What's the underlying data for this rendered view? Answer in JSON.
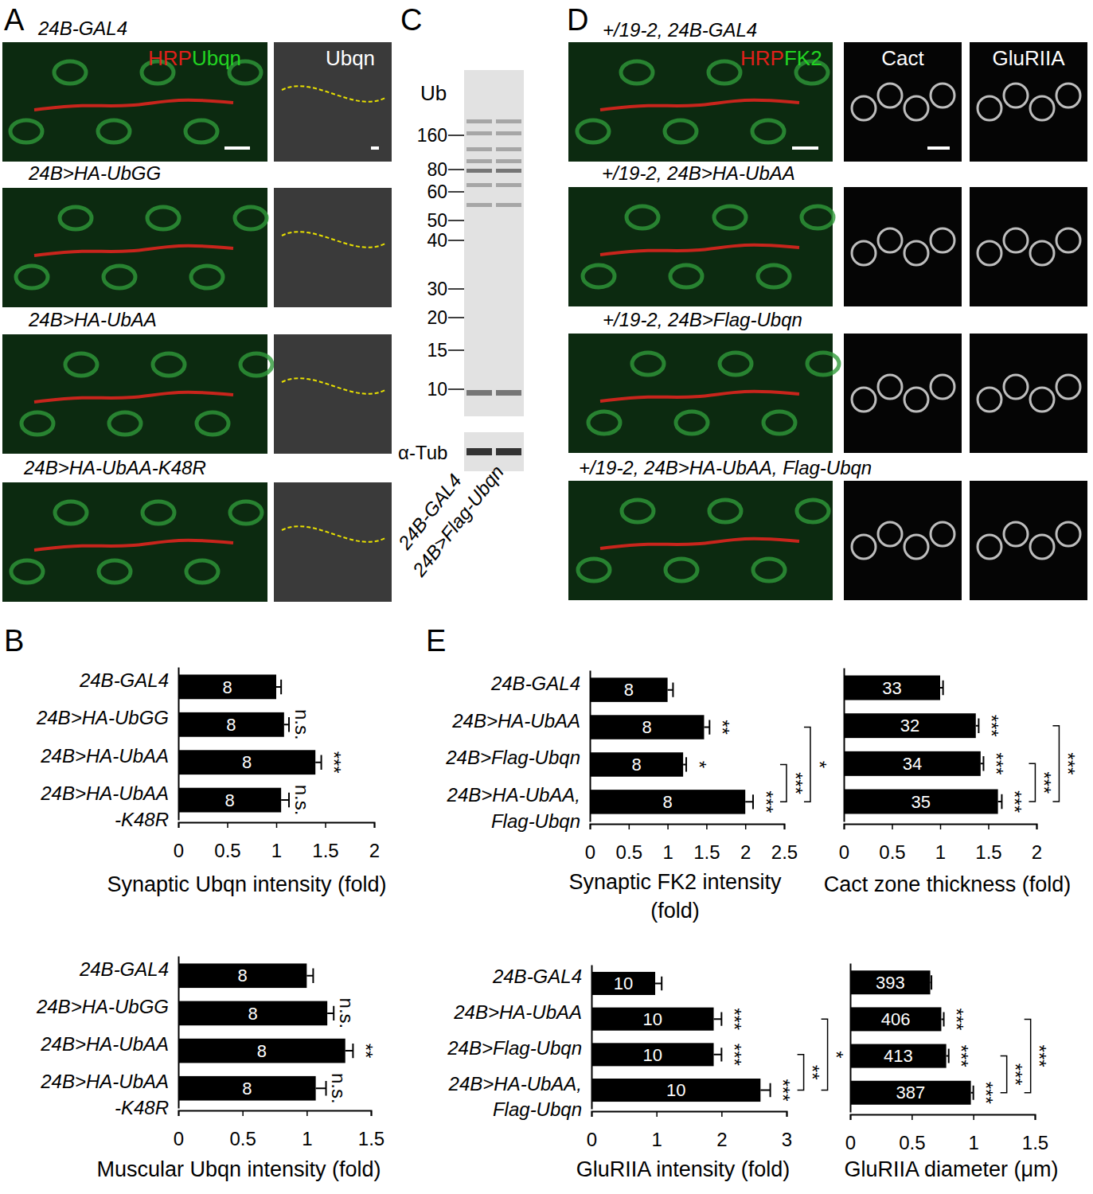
{
  "letters": [
    "A",
    "B",
    "C",
    "D",
    "E"
  ],
  "panels": {
    "A": {
      "rows": [
        "24B-GAL4",
        "24B>HA-UbGG",
        "24B>HA-UbAA",
        "24B>HA-UbAA-K48R"
      ],
      "channels": [
        {
          "text": "HRP",
          "color": "#e0201a"
        },
        {
          "text": "Ubqn",
          "color": "#22d422"
        }
      ],
      "gray_labels": [
        "Ubqn"
      ]
    },
    "C": {
      "blot_label": "Ub",
      "markers": [
        160,
        80,
        60,
        50,
        40,
        30,
        20,
        15,
        10
      ],
      "loading_label": "α-Tub",
      "lanes": [
        "24B-GAL4",
        "24B>Flag-Ubqn"
      ]
    },
    "D": {
      "rows": [
        "+/19-2, 24B-GAL4",
        "+/19-2, 24B>HA-UbAA",
        "+/19-2, 24B>Flag-Ubqn",
        "+/19-2, 24B>HA-UbAA, Flag-Ubqn"
      ],
      "channels": [
        {
          "text": "HRP",
          "color": "#e0201a"
        },
        {
          "text": "FK2",
          "color": "#22d422"
        }
      ],
      "gray_labels": [
        "Cact",
        "GluRIIA"
      ]
    }
  },
  "chart_data": [
    {
      "type": "bar",
      "orientation": "horizontal",
      "color": "#000000",
      "data_labels": false,
      "xlabel": "Synaptic Ubqn intensity (fold)",
      "categories": [
        "24B-GAL4",
        "24B>HA-UbGG",
        "24B>HA-UbAA",
        "24B>HA-UbAA\n-K48R"
      ],
      "values": [
        1.0,
        1.08,
        1.4,
        1.05
      ],
      "errors": [
        0.05,
        0.05,
        0.06,
        0.08
      ],
      "n": [
        8,
        8,
        8,
        8
      ],
      "significance": [
        null,
        "n.s.",
        "***",
        "n.s."
      ],
      "comparisons": [],
      "xlim": [
        0,
        2
      ],
      "xticks": [
        0,
        0.5,
        1,
        1.5,
        2
      ]
    },
    {
      "type": "bar",
      "orientation": "horizontal",
      "color": "#000000",
      "data_labels": false,
      "xlabel": "Muscular Ubqn intensity (fold)",
      "categories": [
        "24B-GAL4",
        "24B>HA-UbGG",
        "24B>HA-UbAA",
        "24B>HA-UbAA\n-K48R"
      ],
      "values": [
        1.0,
        1.16,
        1.3,
        1.07
      ],
      "errors": [
        0.05,
        0.05,
        0.06,
        0.08
      ],
      "n": [
        8,
        8,
        8,
        8
      ],
      "significance": [
        null,
        "n.s.",
        "**",
        "n.s."
      ],
      "comparisons": [],
      "xlim": [
        0,
        1.5
      ],
      "xticks": [
        0,
        0.5,
        1,
        1.5
      ]
    },
    {
      "type": "bar",
      "orientation": "horizontal",
      "color": "#000000",
      "data_labels": false,
      "xlabel": "Synaptic FK2 intensity\n(fold)",
      "categories": [
        "24B-GAL4",
        "24B>HA-UbAA",
        "24B>Flag-Ubqn",
        "24B>HA-UbAA,\nFlag-Ubqn"
      ],
      "values": [
        1.0,
        1.47,
        1.2,
        2.0
      ],
      "errors": [
        0.07,
        0.07,
        0.04,
        0.1
      ],
      "n": [
        8,
        8,
        8,
        8
      ],
      "significance": [
        null,
        "**",
        "*",
        "***"
      ],
      "comparisons": [
        {
          "from": 2,
          "to": 3,
          "label": "***"
        },
        {
          "from": 1,
          "to": 3,
          "label": "*"
        }
      ],
      "xlim": [
        0,
        2.5
      ],
      "xticks": [
        0,
        0.5,
        1,
        1.5,
        2,
        2.5
      ]
    },
    {
      "type": "bar",
      "orientation": "horizontal",
      "color": "#000000",
      "data_labels": false,
      "xlabel": "Cact zone thickness (fold)",
      "categories": [
        null,
        null,
        null,
        null
      ],
      "values": [
        1.0,
        1.37,
        1.42,
        1.6
      ],
      "errors": [
        0.03,
        0.03,
        0.03,
        0.04
      ],
      "n": [
        33,
        32,
        34,
        35
      ],
      "significance": [
        null,
        "***",
        "***",
        "***"
      ],
      "comparisons": [
        {
          "from": 2,
          "to": 3,
          "label": "***"
        },
        {
          "from": 1,
          "to": 3,
          "label": "***"
        }
      ],
      "xlim": [
        0,
        2
      ],
      "xticks": [
        0,
        0.5,
        1,
        1.5,
        2
      ]
    },
    {
      "type": "bar",
      "orientation": "horizontal",
      "color": "#000000",
      "data_labels": false,
      "xlabel": "GluRIIA intensity (fold)",
      "categories": [
        "24B-GAL4",
        "24B>HA-UbAA",
        "24B>Flag-Ubqn",
        "24B>HA-UbAA,\nFlag-Ubqn"
      ],
      "values": [
        0.98,
        1.88,
        1.88,
        2.6
      ],
      "errors": [
        0.1,
        0.12,
        0.12,
        0.15
      ],
      "n": [
        10,
        10,
        10,
        10
      ],
      "significance": [
        null,
        "***",
        "***",
        "***"
      ],
      "comparisons": [
        {
          "from": 2,
          "to": 3,
          "label": "**"
        },
        {
          "from": 1,
          "to": 3,
          "label": "*"
        }
      ],
      "xlim": [
        0,
        3
      ],
      "xticks": [
        0,
        1,
        2,
        3
      ]
    },
    {
      "type": "bar",
      "orientation": "horizontal",
      "color": "#000000",
      "data_labels": false,
      "xlabel": "GluRIIA diameter (μm)",
      "categories": [
        null,
        null,
        null,
        null
      ],
      "values": [
        0.65,
        0.74,
        0.78,
        0.98
      ],
      "errors": [
        0.01,
        0.02,
        0.02,
        0.02
      ],
      "n": [
        393,
        406,
        413,
        387
      ],
      "significance": [
        null,
        "***",
        "***",
        "***"
      ],
      "comparisons": [
        {
          "from": 2,
          "to": 3,
          "label": "***"
        },
        {
          "from": 1,
          "to": 3,
          "label": "***"
        }
      ],
      "xlim": [
        0,
        1.5
      ],
      "xticks": [
        0,
        0.5,
        1,
        1.5
      ]
    }
  ]
}
